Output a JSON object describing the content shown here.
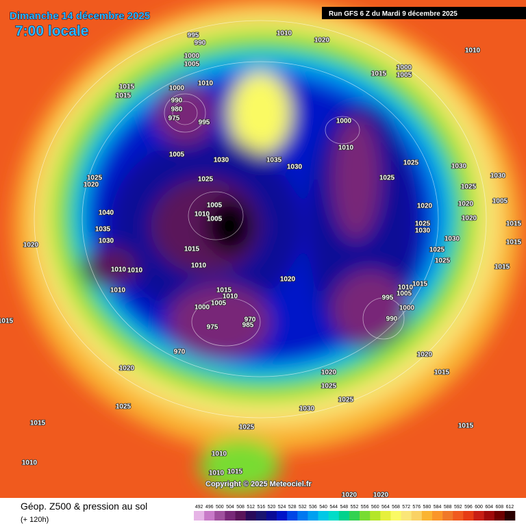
{
  "header": {
    "title": "Dimanche 14 décembre 2025",
    "time": "7:00 locale",
    "run": "Run GFS 6 Z du Mardi 9 décembre 2025"
  },
  "footer": {
    "title": "Géop. Z500 & pression au sol",
    "lead": "(+ 120h)",
    "copyright": "Copyright © 2025 Meteociel.fr"
  },
  "colorbar": {
    "labels": [
      492,
      496,
      500,
      504,
      508,
      512,
      516,
      520,
      524,
      528,
      532,
      536,
      540,
      544,
      548,
      552,
      556,
      560,
      564,
      568,
      572,
      576,
      580,
      584,
      588,
      592,
      596,
      600,
      604,
      608,
      612
    ],
    "colors": [
      "#e6b4e6",
      "#c87ac8",
      "#a0509e",
      "#782878",
      "#5a145a",
      "#2a0a5a",
      "#1a1470",
      "#0a0a96",
      "#0014c8",
      "#0046e6",
      "#0078f0",
      "#00a0f0",
      "#00c8e6",
      "#00dcc8",
      "#00d28c",
      "#32d250",
      "#78dc32",
      "#b4e628",
      "#e6f03c",
      "#fafa64",
      "#fae678",
      "#fad264",
      "#fab432",
      "#fa9628",
      "#f07828",
      "#f05a1e",
      "#e63c14",
      "#c81e14",
      "#a00a0a",
      "#6e0000",
      "#2a0000"
    ]
  },
  "isobar_labels": [
    995,
    990,
    1010,
    1020,
    1010,
    1000,
    1005,
    1000,
    1005,
    1015,
    1015,
    1015,
    1000,
    1010,
    990,
    980,
    975,
    995,
    1005,
    1030,
    1035,
    1030,
    1000,
    1010,
    1025,
    1030,
    1025,
    1025,
    1025,
    1020,
    1030,
    1025,
    1020,
    1005,
    1040,
    1005,
    1010,
    1005,
    1020,
    1025,
    1030,
    1020,
    1015,
    1035,
    1030,
    1020,
    1015,
    1030,
    1025,
    1025,
    1015,
    1010,
    1010,
    1010,
    1015,
    1020,
    1015,
    1010,
    1005,
    1010,
    1015,
    1010,
    995,
    1000,
    1000,
    1005,
    970,
    985,
    990,
    975,
    1015,
    970,
    1020,
    1020,
    1015,
    1020,
    1025,
    1025,
    1025,
    1030,
    1015,
    1025,
    1015,
    1010,
    1010,
    1010,
    1015,
    1020,
    1020
  ]
}
